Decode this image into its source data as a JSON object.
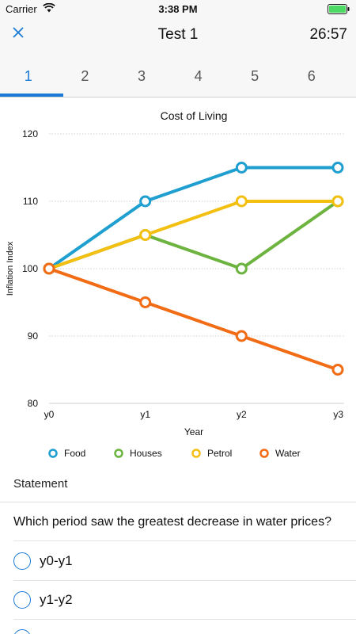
{
  "status_bar": {
    "carrier": "Carrier",
    "time": "3:38 PM"
  },
  "nav": {
    "title": "Test 1",
    "timer": "26:57",
    "close_icon": "close-x-icon"
  },
  "tabs": [
    {
      "label": "1",
      "active": true
    },
    {
      "label": "2"
    },
    {
      "label": "3"
    },
    {
      "label": "4"
    },
    {
      "label": "5"
    },
    {
      "label": "6"
    }
  ],
  "colors": {
    "accent": "#1a7ad8",
    "food": "#1e9fd0",
    "houses": "#6cb33f",
    "petrol": "#f3c012",
    "water": "#f26b15"
  },
  "chart_data": {
    "type": "line",
    "title": "Cost of Living",
    "xlabel": "Year",
    "ylabel": "Inflation Index",
    "categories": [
      "y0",
      "y1",
      "y2",
      "y3"
    ],
    "y_ticks": [
      120,
      110,
      100,
      90,
      80
    ],
    "ylim": [
      80,
      120
    ],
    "grid": true,
    "legend_position": "bottom",
    "series": [
      {
        "name": "Food",
        "values": [
          100,
          110,
          115,
          115
        ],
        "color": "#1e9fd0"
      },
      {
        "name": "Houses",
        "values": [
          100,
          105,
          100,
          110
        ],
        "color": "#6cb33f"
      },
      {
        "name": "Petrol",
        "values": [
          100,
          105,
          110,
          110
        ],
        "color": "#f3c012"
      },
      {
        "name": "Water",
        "values": [
          100,
          95,
          90,
          85
        ],
        "color": "#f26b15"
      }
    ]
  },
  "statement": {
    "label": "Statement",
    "question": "Which period saw the greatest decrease in water prices?",
    "options": [
      {
        "label": "y0-y1"
      },
      {
        "label": "y1-y2"
      }
    ]
  }
}
